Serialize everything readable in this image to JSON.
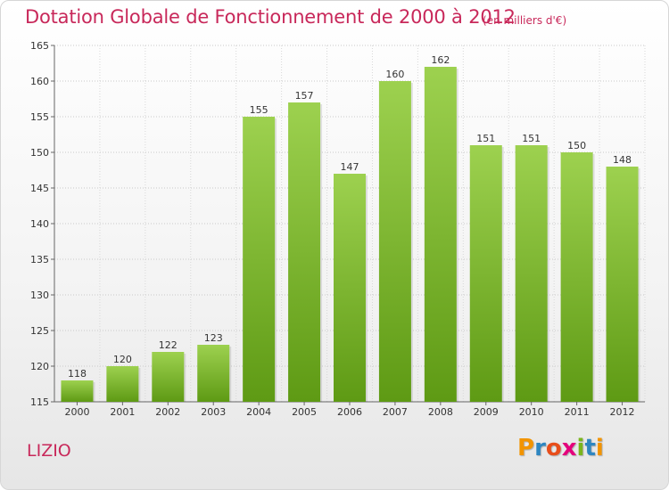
{
  "header": {
    "title": "Dotation Globale de Fonctionnement de 2000 à 2012",
    "unit_note": "(en milliers d'€)"
  },
  "footer": {
    "commune": "LIZIO",
    "logo": {
      "letters": [
        "P",
        "r",
        "o",
        "x",
        "i",
        "t",
        "i"
      ],
      "colors": [
        "#f29400",
        "#2e86c1",
        "#e84e1b",
        "#e4007c",
        "#7ab51d",
        "#2e86c1",
        "#f29400"
      ]
    }
  },
  "chart_data": {
    "type": "bar",
    "title": "Dotation Globale de Fonctionnement de 2000 à 2012",
    "subtitle": "(en milliers d'€)",
    "categories": [
      "2000",
      "2001",
      "2002",
      "2003",
      "2004",
      "2005",
      "2006",
      "2007",
      "2008",
      "2009",
      "2010",
      "2011",
      "2012"
    ],
    "values": [
      118,
      120,
      122,
      123,
      155,
      157,
      147,
      160,
      162,
      151,
      151,
      150,
      148
    ],
    "ylim": [
      115,
      165
    ],
    "yticks": [
      115,
      120,
      125,
      130,
      135,
      140,
      145,
      150,
      155,
      160,
      165
    ],
    "grid": true,
    "bar_color": "#7cb82f",
    "xlabel": "",
    "ylabel": ""
  }
}
